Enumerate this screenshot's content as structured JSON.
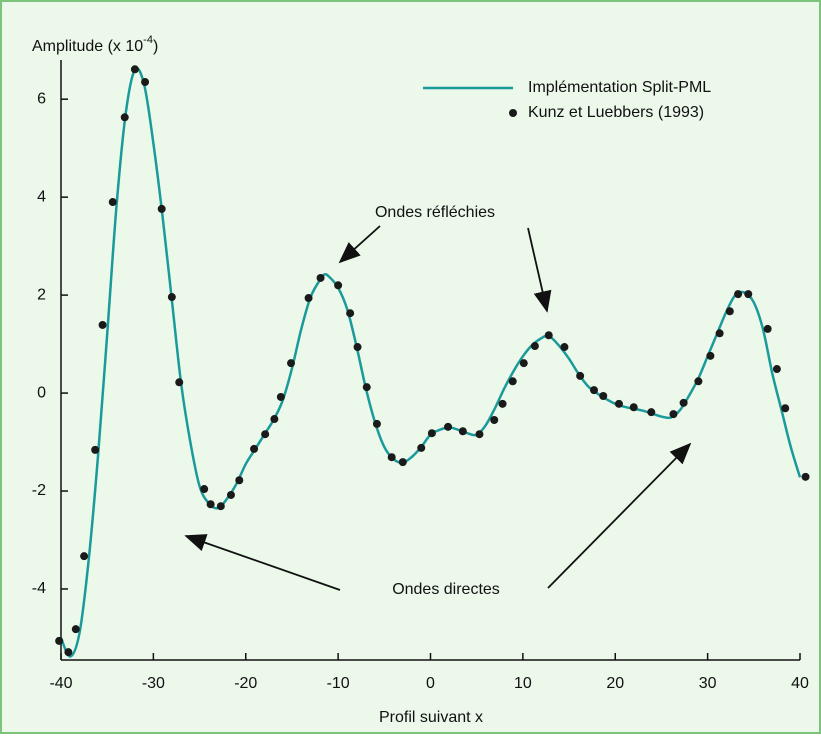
{
  "chart_data": {
    "type": "line_scatter",
    "ylabel": {
      "text": "Amplitude (x 10",
      "sup": "-4",
      "close": ")"
    },
    "xlabel": "Profil suivant x",
    "xlim": [
      -40,
      40
    ],
    "xticks": [
      -40,
      -30,
      -20,
      -10,
      0,
      10,
      20,
      30,
      40
    ],
    "ylim": [
      -5.45,
      6.8
    ],
    "yticks": [
      -4,
      -2,
      0,
      2,
      4,
      6
    ],
    "series": [
      {
        "name": "Implémentation Split-PML",
        "color": "#1a9a9a",
        "kind": "line",
        "x": [
          -40,
          -39,
          -38,
          -37,
          -36,
          -35,
          -34,
          -33,
          -32,
          -31,
          -30,
          -29,
          -28,
          -27,
          -26,
          -25,
          -24,
          -23,
          -22,
          -21,
          -20,
          -19,
          -18,
          -17,
          -16,
          -15,
          -14,
          -13,
          -12,
          -11.5,
          -11,
          -10,
          -9,
          -8,
          -7,
          -6,
          -5,
          -4,
          -3,
          -2,
          -1,
          0,
          1,
          2,
          3,
          4,
          5,
          6,
          7,
          8,
          9,
          10,
          11,
          12,
          12.7,
          13,
          14,
          15,
          16,
          17,
          18,
          19,
          20,
          21,
          22,
          23,
          24,
          25,
          26,
          27,
          28,
          29,
          30,
          31,
          32,
          33,
          34,
          35,
          36,
          37,
          38,
          39,
          40
        ],
        "values": [
          -5.0,
          -5.38,
          -4.9,
          -3.4,
          -1.3,
          1.2,
          3.8,
          5.7,
          6.6,
          6.3,
          5.1,
          3.6,
          1.9,
          0.2,
          -1.0,
          -1.9,
          -2.25,
          -2.35,
          -2.15,
          -1.85,
          -1.45,
          -1.15,
          -0.85,
          -0.55,
          -0.15,
          0.5,
          1.3,
          1.95,
          2.3,
          2.42,
          2.38,
          2.15,
          1.7,
          0.95,
          0.1,
          -0.6,
          -1.1,
          -1.35,
          -1.42,
          -1.3,
          -1.1,
          -0.85,
          -0.75,
          -0.7,
          -0.75,
          -0.82,
          -0.85,
          -0.65,
          -0.3,
          0.1,
          0.45,
          0.75,
          0.98,
          1.12,
          1.18,
          1.15,
          0.95,
          0.7,
          0.4,
          0.15,
          0.0,
          -0.12,
          -0.22,
          -0.28,
          -0.32,
          -0.36,
          -0.42,
          -0.48,
          -0.5,
          -0.35,
          -0.05,
          0.3,
          0.75,
          1.2,
          1.65,
          2.0,
          2.05,
          1.85,
          1.3,
          0.4,
          -0.35,
          -1.1,
          -1.72
        ]
      },
      {
        "name": "Kunz et Luebbers (1993)",
        "color": "#1a1a1a",
        "kind": "scatter",
        "x": [
          -40.2,
          -39.2,
          -38.4,
          -37.5,
          -36.3,
          -35.5,
          -34.4,
          -33.1,
          -32,
          -30.9,
          -29.1,
          -28,
          -27.2,
          -24.5,
          -23.8,
          -22.7,
          -21.6,
          -20.7,
          -19.1,
          -17.9,
          -16.9,
          -16.2,
          -15.1,
          -13.2,
          -11.9,
          -10,
          -8.7,
          -7.9,
          -6.9,
          -5.8,
          -4.2,
          -3,
          -1,
          0.15,
          1.9,
          3.5,
          5.3,
          6.9,
          7.8,
          8.9,
          10.1,
          11.3,
          12.8,
          14.5,
          16.2,
          17.7,
          18.7,
          20.4,
          22,
          23.9,
          26.3,
          27.4,
          29,
          30.3,
          31.3,
          32.4,
          33.3,
          34.4,
          36.5,
          37.5,
          38.4,
          40.6
        ],
        "values": [
          -5.06,
          -5.29,
          -4.82,
          -3.33,
          -1.16,
          1.39,
          3.9,
          5.63,
          6.61,
          6.35,
          3.76,
          1.96,
          0.22,
          -1.96,
          -2.27,
          -2.31,
          -2.08,
          -1.78,
          -1.14,
          -0.84,
          -0.53,
          -0.08,
          0.61,
          1.94,
          2.35,
          2.2,
          1.63,
          0.94,
          0.12,
          -0.63,
          -1.31,
          -1.41,
          -1.12,
          -0.82,
          -0.69,
          -0.78,
          -0.84,
          -0.55,
          -0.22,
          0.24,
          0.61,
          0.96,
          1.18,
          0.94,
          0.35,
          0.06,
          -0.06,
          -0.22,
          -0.29,
          -0.39,
          -0.43,
          -0.2,
          0.24,
          0.76,
          1.22,
          1.67,
          2.02,
          2.02,
          1.31,
          0.49,
          -0.31,
          -1.71
        ]
      }
    ],
    "annotations": [
      {
        "text": "Ondes réfléchies"
      },
      {
        "text": "Ondes directes"
      }
    ]
  }
}
